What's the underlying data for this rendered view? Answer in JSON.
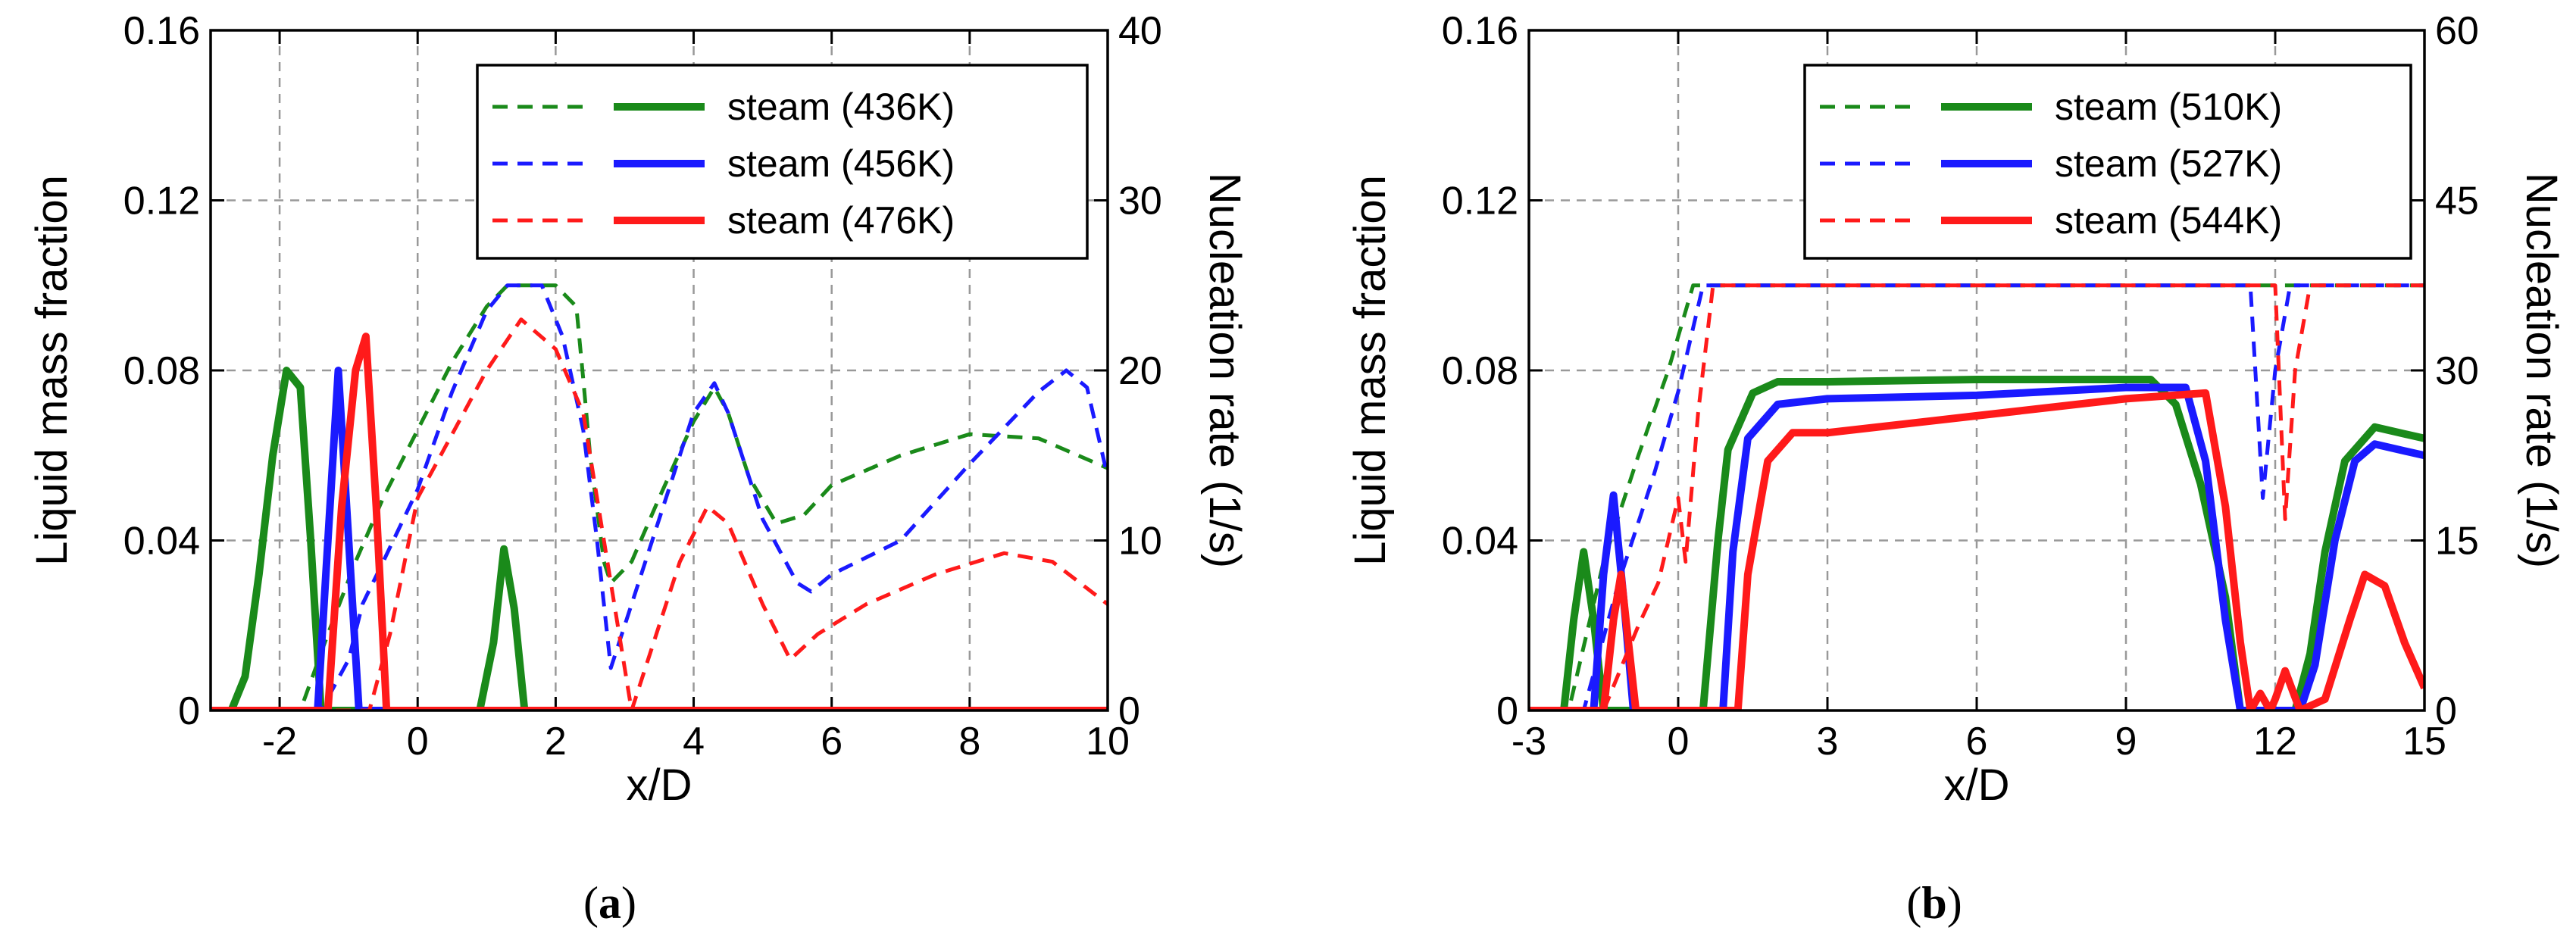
{
  "chart_data": [
    {
      "type": "line",
      "caption_open": "(",
      "caption_letter": "a",
      "caption_close": ")",
      "xlabel": "x/D",
      "ylabel_left": "Liquid mass fraction",
      "ylabel_right": "Nucleation rate (1/s)",
      "xlim": [
        -3,
        10
      ],
      "ylim_left": [
        0,
        0.16
      ],
      "ylim_right": [
        0,
        40
      ],
      "x_ticks": [
        -2,
        0,
        2,
        4,
        6,
        8,
        10
      ],
      "x_tick_labels": [
        "-2",
        "0",
        "2",
        "4",
        "6",
        "8",
        "10"
      ],
      "y_ticks_left": [
        0,
        0.04,
        0.08,
        0.12,
        0.16
      ],
      "y_tick_labels_left": [
        "0",
        "0.04",
        "0.08",
        "0.12",
        "0.16"
      ],
      "y_ticks_right": [
        0,
        10,
        20,
        30,
        40
      ],
      "y_tick_labels_right": [
        "0",
        "10",
        "20",
        "30",
        "40"
      ],
      "grid": true,
      "legend_position": "top-right",
      "series": [
        {
          "name": "steam (436K)",
          "color": "#1a8a1a",
          "mass_fraction": [
            [
              -3,
              0
            ],
            [
              -1.7,
              0
            ],
            [
              -1.3,
              0.018
            ],
            [
              -0.9,
              0.035
            ],
            [
              -0.5,
              0.05
            ],
            [
              0,
              0.066
            ],
            [
              0.5,
              0.082
            ],
            [
              1,
              0.095
            ],
            [
              1.3,
              0.1
            ],
            [
              2,
              0.1
            ],
            [
              2.3,
              0.095
            ],
            [
              2.4,
              0.078
            ],
            [
              2.5,
              0.06
            ],
            [
              2.7,
              0.035
            ],
            [
              2.8,
              0.03
            ],
            [
              3.1,
              0.035
            ],
            [
              3.5,
              0.05
            ],
            [
              4,
              0.068
            ],
            [
              4.3,
              0.076
            ],
            [
              4.5,
              0.07
            ],
            [
              4.8,
              0.055
            ],
            [
              5.2,
              0.044
            ],
            [
              5.6,
              0.046
            ],
            [
              6,
              0.053
            ],
            [
              7,
              0.06
            ],
            [
              8,
              0.065
            ],
            [
              9,
              0.064
            ],
            [
              10,
              0.057
            ]
          ],
          "nucleation": [
            [
              -3,
              0
            ],
            [
              -2.7,
              0
            ],
            [
              -2.5,
              2
            ],
            [
              -2.3,
              8
            ],
            [
              -2.1,
              15
            ],
            [
              -1.9,
              20
            ],
            [
              -1.7,
              19
            ],
            [
              -1.55,
              10
            ],
            [
              -1.4,
              0
            ],
            [
              0.9,
              0
            ],
            [
              1.1,
              4
            ],
            [
              1.25,
              9.5
            ],
            [
              1.4,
              6
            ],
            [
              1.55,
              0
            ],
            [
              10,
              0
            ]
          ]
        },
        {
          "name": "steam (456K)",
          "color": "#1a1aff",
          "mass_fraction": [
            [
              -3,
              0
            ],
            [
              -1.4,
              0
            ],
            [
              -1,
              0.012
            ],
            [
              -0.8,
              0.025
            ],
            [
              -0.5,
              0.035
            ],
            [
              0,
              0.052
            ],
            [
              0.5,
              0.075
            ],
            [
              1,
              0.094
            ],
            [
              1.3,
              0.1
            ],
            [
              1.8,
              0.1
            ],
            [
              2.1,
              0.088
            ],
            [
              2.4,
              0.066
            ],
            [
              2.6,
              0.04
            ],
            [
              2.8,
              0.01
            ],
            [
              3,
              0.02
            ],
            [
              3.5,
              0.045
            ],
            [
              4,
              0.07
            ],
            [
              4.3,
              0.077
            ],
            [
              4.5,
              0.07
            ],
            [
              5,
              0.045
            ],
            [
              5.5,
              0.03
            ],
            [
              5.7,
              0.028
            ],
            [
              6,
              0.032
            ],
            [
              7,
              0.04
            ],
            [
              8,
              0.058
            ],
            [
              9,
              0.075
            ],
            [
              9.4,
              0.08
            ],
            [
              9.7,
              0.076
            ],
            [
              10,
              0.055
            ]
          ],
          "nucleation": [
            [
              -3,
              0
            ],
            [
              -1.45,
              0
            ],
            [
              -1.3,
              10
            ],
            [
              -1.15,
              20
            ],
            [
              -1.0,
              10
            ],
            [
              -0.85,
              0
            ],
            [
              10,
              0
            ]
          ]
        },
        {
          "name": "steam (476K)",
          "color": "#ff1a1a",
          "mass_fraction": [
            [
              -3,
              0
            ],
            [
              -0.7,
              0
            ],
            [
              -0.4,
              0.018
            ],
            [
              0,
              0.05
            ],
            [
              0.5,
              0.065
            ],
            [
              1,
              0.08
            ],
            [
              1.5,
              0.092
            ],
            [
              2,
              0.085
            ],
            [
              2.4,
              0.07
            ],
            [
              2.7,
              0.04
            ],
            [
              2.9,
              0.02
            ],
            [
              3.1,
              0
            ],
            [
              3.4,
              0.015
            ],
            [
              3.8,
              0.035
            ],
            [
              4.2,
              0.048
            ],
            [
              4.5,
              0.044
            ],
            [
              5,
              0.025
            ],
            [
              5.4,
              0.012
            ],
            [
              5.8,
              0.018
            ],
            [
              6.5,
              0.025
            ],
            [
              7.5,
              0.032
            ],
            [
              8.5,
              0.037
            ],
            [
              9.2,
              0.035
            ],
            [
              9.6,
              0.03
            ],
            [
              10,
              0.025
            ]
          ],
          "nucleation": [
            [
              -3,
              0
            ],
            [
              -1.3,
              0
            ],
            [
              -1.1,
              12
            ],
            [
              -0.9,
              20
            ],
            [
              -0.75,
              22
            ],
            [
              -0.6,
              12
            ],
            [
              -0.45,
              0
            ],
            [
              10,
              0
            ]
          ]
        }
      ]
    },
    {
      "type": "line",
      "caption_open": "(",
      "caption_letter": "b",
      "caption_close": ")",
      "xlabel": "x/D",
      "ylabel_left": "Liquid mass fraction",
      "ylabel_right": "Nucleation rate (1/s)",
      "xlim": [
        -3,
        15
      ],
      "ylim_left": [
        0,
        0.16
      ],
      "ylim_right": [
        0,
        60
      ],
      "x_ticks": [
        -3,
        0,
        3,
        6,
        9,
        12,
        15
      ],
      "x_tick_labels": [
        "-3",
        "0",
        "3",
        "6",
        "9",
        "12",
        "15"
      ],
      "y_ticks_left": [
        0,
        0.04,
        0.08,
        0.12,
        0.16
      ],
      "y_tick_labels_left": [
        "0",
        "0.04",
        "0.08",
        "0.12",
        "0.16"
      ],
      "y_ticks_right": [
        0,
        15,
        30,
        45,
        60
      ],
      "y_tick_labels_right": [
        "0",
        "15",
        "30",
        "45",
        "60"
      ],
      "grid": true,
      "legend_position": "top-right",
      "series": [
        {
          "name": "steam (510K)",
          "color": "#1a8a1a",
          "mass_fraction": [
            [
              -3,
              0
            ],
            [
              -2.2,
              0
            ],
            [
              -1.5,
              0.035
            ],
            [
              -0.8,
              0.06
            ],
            [
              -0.2,
              0.08
            ],
            [
              0.3,
              0.1
            ],
            [
              15,
              0.1
            ]
          ],
          "nucleation": [
            [
              -3,
              0
            ],
            [
              -2.3,
              0
            ],
            [
              -2.1,
              8
            ],
            [
              -1.9,
              14
            ],
            [
              -1.7,
              8
            ],
            [
              -1.5,
              0
            ],
            [
              0.5,
              0
            ],
            [
              0.8,
              15
            ],
            [
              1,
              23
            ],
            [
              1.5,
              28
            ],
            [
              2,
              29
            ],
            [
              3,
              29
            ],
            [
              6,
              29.2
            ],
            [
              9.5,
              29.2
            ],
            [
              10,
              27
            ],
            [
              10.5,
              20
            ],
            [
              11,
              10
            ],
            [
              11.3,
              0
            ],
            [
              12.4,
              0
            ],
            [
              12.7,
              5
            ],
            [
              13,
              14
            ],
            [
              13.4,
              22
            ],
            [
              14,
              25
            ],
            [
              15,
              24
            ]
          ]
        },
        {
          "name": "steam (527K)",
          "color": "#1a1aff",
          "mass_fraction": [
            [
              -3,
              0
            ],
            [
              -1.9,
              0
            ],
            [
              -1.2,
              0.03
            ],
            [
              -0.5,
              0.055
            ],
            [
              0,
              0.075
            ],
            [
              0.5,
              0.1
            ],
            [
              11.5,
              0.1
            ],
            [
              11.75,
              0.05
            ],
            [
              12.0,
              0.08
            ],
            [
              12.3,
              0.1
            ],
            [
              15,
              0.1
            ]
          ],
          "nucleation": [
            [
              -3,
              0
            ],
            [
              -1.7,
              0
            ],
            [
              -1.5,
              12
            ],
            [
              -1.3,
              19
            ],
            [
              -1.1,
              10
            ],
            [
              -0.9,
              0
            ],
            [
              0.9,
              0
            ],
            [
              1.1,
              14
            ],
            [
              1.4,
              24
            ],
            [
              2,
              27
            ],
            [
              3,
              27.5
            ],
            [
              6,
              27.8
            ],
            [
              9,
              28.5
            ],
            [
              10.2,
              28.5
            ],
            [
              10.6,
              22
            ],
            [
              11,
              8
            ],
            [
              11.3,
              0
            ],
            [
              12.5,
              0
            ],
            [
              12.8,
              4
            ],
            [
              13.2,
              15
            ],
            [
              13.6,
              22
            ],
            [
              14,
              23.5
            ],
            [
              15,
              22.5
            ]
          ]
        },
        {
          "name": "steam (544K)",
          "color": "#ff1a1a",
          "mass_fraction": [
            [
              -3,
              0
            ],
            [
              -1.5,
              0
            ],
            [
              -0.8,
              0.02
            ],
            [
              -0.4,
              0.03
            ],
            [
              0,
              0.05
            ],
            [
              0.15,
              0.035
            ],
            [
              0.4,
              0.07
            ],
            [
              0.7,
              0.1
            ],
            [
              12.0,
              0.1
            ],
            [
              12.2,
              0.045
            ],
            [
              12.4,
              0.08
            ],
            [
              12.7,
              0.1
            ],
            [
              15,
              0.1
            ]
          ],
          "nucleation": [
            [
              -3,
              0
            ],
            [
              -1.5,
              0
            ],
            [
              -1.3,
              8
            ],
            [
              -1.15,
              12
            ],
            [
              -1.0,
              6
            ],
            [
              -0.85,
              0
            ],
            [
              1.2,
              0
            ],
            [
              1.4,
              12
            ],
            [
              1.8,
              22
            ],
            [
              2.3,
              24.5
            ],
            [
              3,
              24.5
            ],
            [
              6,
              26
            ],
            [
              9,
              27.5
            ],
            [
              10.6,
              28
            ],
            [
              11,
              18
            ],
            [
              11.3,
              6
            ],
            [
              11.5,
              0
            ],
            [
              11.7,
              1.5
            ],
            [
              11.9,
              0
            ],
            [
              12,
              1
            ],
            [
              12.2,
              3.5
            ],
            [
              12.5,
              0
            ],
            [
              13,
              1
            ],
            [
              13.5,
              8
            ],
            [
              13.8,
              12
            ],
            [
              14.2,
              11
            ],
            [
              14.6,
              6
            ],
            [
              15,
              2
            ]
          ]
        }
      ]
    }
  ]
}
